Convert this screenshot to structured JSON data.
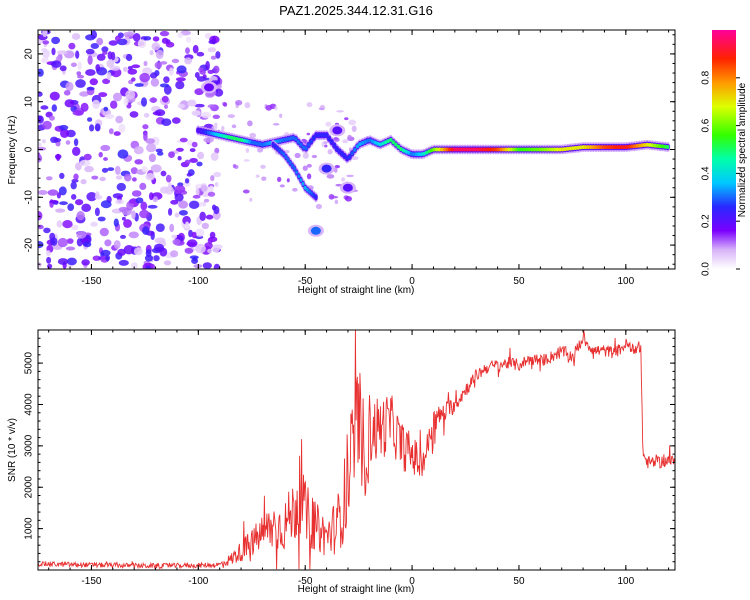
{
  "title": "PAZ1.2025.344.12.31.G16",
  "colors": {
    "snr_line": "#e83030",
    "axes": "#000000",
    "background": "#ffffff"
  },
  "chart_data": [
    {
      "type": "heatmap",
      "xlabel": "Height of straight line (km)",
      "ylabel": "Frequency (Hz)",
      "xlim": [
        -175,
        123
      ],
      "ylim": [
        -25,
        25
      ],
      "xticks": [
        -150,
        -100,
        -50,
        0,
        50,
        100
      ],
      "yticks": [
        -20,
        -10,
        0,
        10,
        20
      ],
      "colorbar": {
        "label": "Normalized spectral amplitude",
        "range": [
          0,
          1
        ],
        "ticks": [
          "0.0",
          "0.2",
          "0.4",
          "0.6",
          "0.8"
        ],
        "tick_values": [
          0,
          0.2,
          0.4,
          0.6,
          0.8
        ]
      },
      "ridge": {
        "x": [
          -100,
          -95,
          -90,
          -85,
          -80,
          -75,
          -70,
          -65,
          -60,
          -55,
          -50,
          -45,
          -40,
          -35,
          -30,
          -25,
          -20,
          -15,
          -10,
          -5,
          0,
          5,
          10,
          20,
          30,
          40,
          50,
          60,
          70,
          80,
          90,
          100,
          110,
          120
        ],
        "freq": [
          4,
          3.5,
          3,
          2.5,
          2,
          1.5,
          1,
          1.5,
          2,
          2.5,
          0,
          3,
          3,
          0,
          -2,
          1,
          2,
          1,
          2,
          0,
          -1,
          -1,
          0,
          0,
          0,
          0,
          0,
          0,
          0,
          0.5,
          0.5,
          0.5,
          1,
          0.5
        ],
        "amplitude": [
          0.2,
          0.3,
          0.4,
          0.5,
          0.5,
          0.3,
          0.3,
          0.35,
          0.3,
          0.3,
          0.3,
          0.25,
          0.25,
          0.25,
          0.25,
          0.35,
          0.3,
          0.4,
          0.5,
          0.5,
          0.3,
          0.4,
          0.6,
          0.95,
          0.95,
          0.85,
          0.55,
          0.6,
          0.7,
          0.7,
          0.85,
          0.9,
          0.7,
          0.5
        ]
      },
      "branch": {
        "x": [
          -65,
          -60,
          -55,
          -50,
          -45
        ],
        "freq": [
          1,
          -1,
          -4,
          -8,
          -10
        ],
        "amplitude": [
          0.25,
          0.3,
          0.3,
          0.35,
          0.25
        ]
      },
      "blobs": [
        {
          "x": -45,
          "freq": -17,
          "amplitude": 0.3
        },
        {
          "x": -40,
          "freq": -4,
          "amplitude": 0.25
        },
        {
          "x": -35,
          "freq": 4,
          "amplitude": 0.2
        },
        {
          "x": -95,
          "freq": 13,
          "amplitude": 0.18
        },
        {
          "x": -30,
          "freq": -8,
          "amplitude": 0.2
        }
      ],
      "noise_region": {
        "x_range": [
          -175,
          -90
        ],
        "freq_range": [
          -25,
          25
        ],
        "amplitude_max": 0.22
      }
    },
    {
      "type": "line",
      "xlabel": "Height of straight line (km)",
      "ylabel": "SNR (10 * v/v)",
      "xlim": [
        -175,
        123
      ],
      "ylim": [
        0,
        5800
      ],
      "xticks": [
        -150,
        -100,
        -50,
        0,
        50,
        100
      ],
      "yticks": [
        1000,
        2000,
        3000,
        4000,
        5000
      ],
      "series": [
        {
          "name": "SNR",
          "x": [
            -175,
            -150,
            -125,
            -100,
            -90,
            -85,
            -80,
            -75,
            -70,
            -65,
            -60,
            -55,
            -52,
            -50,
            -45,
            -40,
            -35,
            -30,
            -27,
            -25,
            -22,
            -20,
            -15,
            -10,
            -5,
            0,
            5,
            10,
            20,
            25,
            30,
            35,
            40,
            45,
            50,
            55,
            60,
            65,
            70,
            75,
            80,
            85,
            90,
            95,
            100,
            105,
            107,
            108,
            110,
            115,
            120,
            123
          ],
          "values": [
            150,
            120,
            100,
            110,
            130,
            250,
            450,
            650,
            900,
            1050,
            1050,
            1450,
            1900,
            1350,
            1050,
            800,
            1100,
            2000,
            3300,
            3700,
            2800,
            3400,
            3400,
            3600,
            3000,
            2800,
            2500,
            3600,
            4000,
            4350,
            4700,
            4900,
            4950,
            5000,
            4950,
            5100,
            5050,
            5150,
            5300,
            5150,
            5600,
            5300,
            5300,
            5250,
            5450,
            5350,
            5400,
            2800,
            2600,
            2600,
            2650,
            2600
          ],
          "noise_amplitude": [
            60,
            60,
            60,
            60,
            60,
            150,
            250,
            350,
            450,
            600,
            600,
            800,
            1000,
            800,
            600,
            500,
            700,
            1200,
            1300,
            1300,
            1100,
            900,
            800,
            700,
            600,
            500,
            400,
            300,
            200,
            180,
            160,
            150,
            150,
            150,
            150,
            150,
            150,
            150,
            150,
            150,
            150,
            150,
            150,
            150,
            150,
            150,
            150,
            150,
            150,
            150,
            150,
            150
          ]
        }
      ]
    }
  ]
}
